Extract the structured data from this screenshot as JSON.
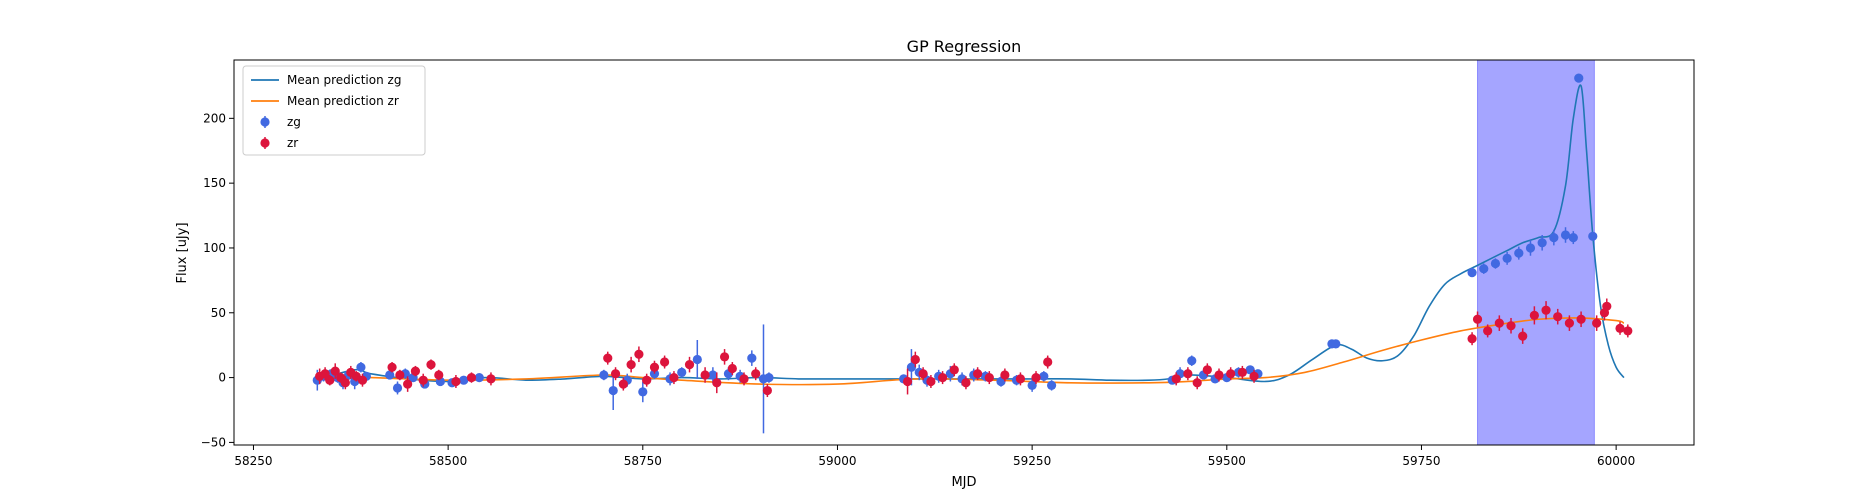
{
  "chart_data": {
    "type": "scatter",
    "title": "GP Regression",
    "xlabel": "MJD",
    "ylabel": "Flux [uJy]",
    "xlim": [
      58225,
      60100
    ],
    "ylim": [
      -52,
      245
    ],
    "xticks": [
      58250,
      58500,
      58750,
      59000,
      59250,
      59500,
      59750,
      60000
    ],
    "yticks": [
      -50,
      0,
      50,
      100,
      150,
      200
    ],
    "grid": false,
    "legend_position": "top-left",
    "highlight_band": {
      "x_start": 59822,
      "x_end": 59972,
      "color": "#a5a5ff"
    },
    "colors": {
      "mean_zg": "#1f77b4",
      "mean_zr": "#ff7f0e",
      "zg": "#4169e1",
      "zr": "#dc143c"
    },
    "series": [
      {
        "name": "Mean prediction zg",
        "kind": "line",
        "color": "#1f77b4",
        "x": [
          58330,
          58380,
          58400,
          58450,
          58500,
          58550,
          58600,
          58650,
          58700,
          58750,
          58800,
          58850,
          58900,
          58950,
          59000,
          59050,
          59100,
          59150,
          59200,
          59250,
          59300,
          59350,
          59400,
          59425,
          59450,
          59500,
          59550,
          59580,
          59610,
          59640,
          59660,
          59680,
          59700,
          59720,
          59740,
          59760,
          59780,
          59800,
          59820,
          59840,
          59860,
          59880,
          59900,
          59920,
          59935,
          59945,
          59955,
          59962,
          59970,
          59980,
          59990,
          60000,
          60010
        ],
        "y": [
          -2,
          6,
          3,
          -1,
          -3,
          0,
          -2,
          -1,
          1,
          -1,
          0,
          -1,
          0,
          -1,
          -1,
          -1,
          -1,
          -1,
          -1,
          -1,
          -1,
          -2,
          -2,
          -1,
          2,
          0,
          -3,
          2,
          14,
          25,
          22,
          15,
          13,
          17,
          32,
          55,
          72,
          80,
          86,
          92,
          98,
          104,
          108,
          113,
          148,
          200,
          225,
          175,
          110,
          55,
          25,
          8,
          0
        ]
      },
      {
        "name": "Mean prediction zr",
        "kind": "line",
        "color": "#ff7f0e",
        "x": [
          58330,
          58400,
          58500,
          58600,
          58700,
          58750,
          58800,
          58900,
          59000,
          59100,
          59200,
          59300,
          59400,
          59450,
          59500,
          59550,
          59600,
          59650,
          59700,
          59750,
          59800,
          59850,
          59900,
          59950,
          60000,
          60010
        ],
        "y": [
          0,
          0,
          -2,
          -1,
          2,
          0,
          -2,
          -5,
          -5,
          -1,
          -2,
          -4,
          -4,
          -3,
          -1,
          0,
          4,
          12,
          21,
          29,
          36,
          41,
          45,
          46,
          44,
          42
        ]
      },
      {
        "name": "zg",
        "kind": "points",
        "color": "#4169e1",
        "x": [
          58332,
          58340,
          58350,
          58358,
          58365,
          58372,
          58380,
          58388,
          58395,
          58425,
          58435,
          58445,
          58455,
          58470,
          58490,
          58505,
          58520,
          58540,
          58700,
          58712,
          58730,
          58750,
          58765,
          58785,
          58800,
          58820,
          58840,
          58860,
          58875,
          58890,
          58905,
          58912,
          59085,
          59095,
          59105,
          59115,
          59130,
          59145,
          59160,
          59175,
          59190,
          59210,
          59230,
          59250,
          59265,
          59275,
          59430,
          59440,
          59455,
          59470,
          59485,
          59500,
          59515,
          59530,
          59540,
          59635,
          59640,
          59815,
          59830,
          59845,
          59860,
          59875,
          59890,
          59905,
          59920,
          59935,
          59945,
          59952,
          59970
        ],
        "y": [
          -2,
          1,
          3,
          0,
          -4,
          2,
          -3,
          8,
          1,
          2,
          -8,
          3,
          0,
          -5,
          -3,
          -4,
          -2,
          0,
          2,
          -10,
          -2,
          -11,
          3,
          -1,
          4,
          14,
          2,
          3,
          1,
          15,
          -1,
          0,
          -1,
          8,
          4,
          -2,
          1,
          3,
          -1,
          2,
          1,
          -3,
          -2,
          -6,
          1,
          -6,
          -2,
          3,
          13,
          2,
          -1,
          0,
          4,
          6,
          3,
          26,
          26,
          81,
          84,
          88,
          92,
          96,
          100,
          104,
          108,
          110,
          108,
          231,
          109
        ],
        "err": [
          8,
          4,
          3,
          4,
          5,
          4,
          6,
          4,
          3,
          3,
          5,
          4,
          3,
          3,
          3,
          3,
          3,
          3,
          4,
          15,
          5,
          8,
          4,
          5,
          4,
          15,
          6,
          5,
          5,
          6,
          42,
          4,
          3,
          14,
          6,
          5,
          5,
          6,
          5,
          5,
          4,
          4,
          4,
          5,
          4,
          4,
          3,
          5,
          4,
          3,
          3,
          3,
          4,
          3,
          3,
          2,
          2,
          3,
          4,
          4,
          5,
          5,
          6,
          6,
          6,
          6,
          5,
          3,
          3
        ]
      },
      {
        "name": "zr",
        "kind": "points",
        "color": "#dc143c",
        "x": [
          58335,
          58342,
          58348,
          58355,
          58362,
          58368,
          58375,
          58382,
          58390,
          58428,
          58438,
          58448,
          58458,
          58468,
          58478,
          58488,
          58510,
          58530,
          58555,
          58705,
          58715,
          58725,
          58735,
          58745,
          58755,
          58765,
          58778,
          58790,
          58810,
          58830,
          58845,
          58855,
          58865,
          58880,
          58895,
          58910,
          59090,
          59100,
          59110,
          59120,
          59135,
          59150,
          59165,
          59180,
          59195,
          59215,
          59235,
          59255,
          59270,
          59435,
          59450,
          59462,
          59475,
          59490,
          59505,
          59520,
          59535,
          59815,
          59822,
          59835,
          59850,
          59865,
          59880,
          59895,
          59910,
          59925,
          59940,
          59955,
          59975,
          59985,
          59988,
          60005,
          60015
        ],
        "y": [
          1,
          3,
          -2,
          5,
          0,
          -4,
          4,
          1,
          -2,
          8,
          2,
          -5,
          5,
          -2,
          10,
          2,
          -3,
          0,
          -1,
          15,
          3,
          -5,
          10,
          18,
          -2,
          8,
          12,
          0,
          10,
          2,
          -4,
          16,
          7,
          -1,
          3,
          -10,
          -3,
          14,
          3,
          -3,
          0,
          6,
          -4,
          3,
          0,
          2,
          -1,
          0,
          12,
          -1,
          3,
          -4,
          6,
          2,
          3,
          4,
          1,
          30,
          45,
          36,
          42,
          40,
          32,
          48,
          52,
          47,
          42,
          45,
          42,
          50,
          55,
          38,
          36
        ],
        "err": [
          6,
          5,
          4,
          6,
          4,
          5,
          5,
          4,
          5,
          4,
          4,
          6,
          4,
          5,
          4,
          4,
          5,
          4,
          5,
          5,
          5,
          5,
          6,
          6,
          5,
          5,
          5,
          5,
          6,
          6,
          8,
          6,
          5,
          5,
          5,
          5,
          10,
          6,
          5,
          5,
          5,
          5,
          5,
          5,
          5,
          5,
          5,
          5,
          5,
          5,
          5,
          5,
          5,
          5,
          5,
          5,
          5,
          5,
          6,
          5,
          6,
          6,
          6,
          7,
          7,
          6,
          6,
          6,
          6,
          6,
          6,
          5,
          5
        ]
      }
    ]
  }
}
